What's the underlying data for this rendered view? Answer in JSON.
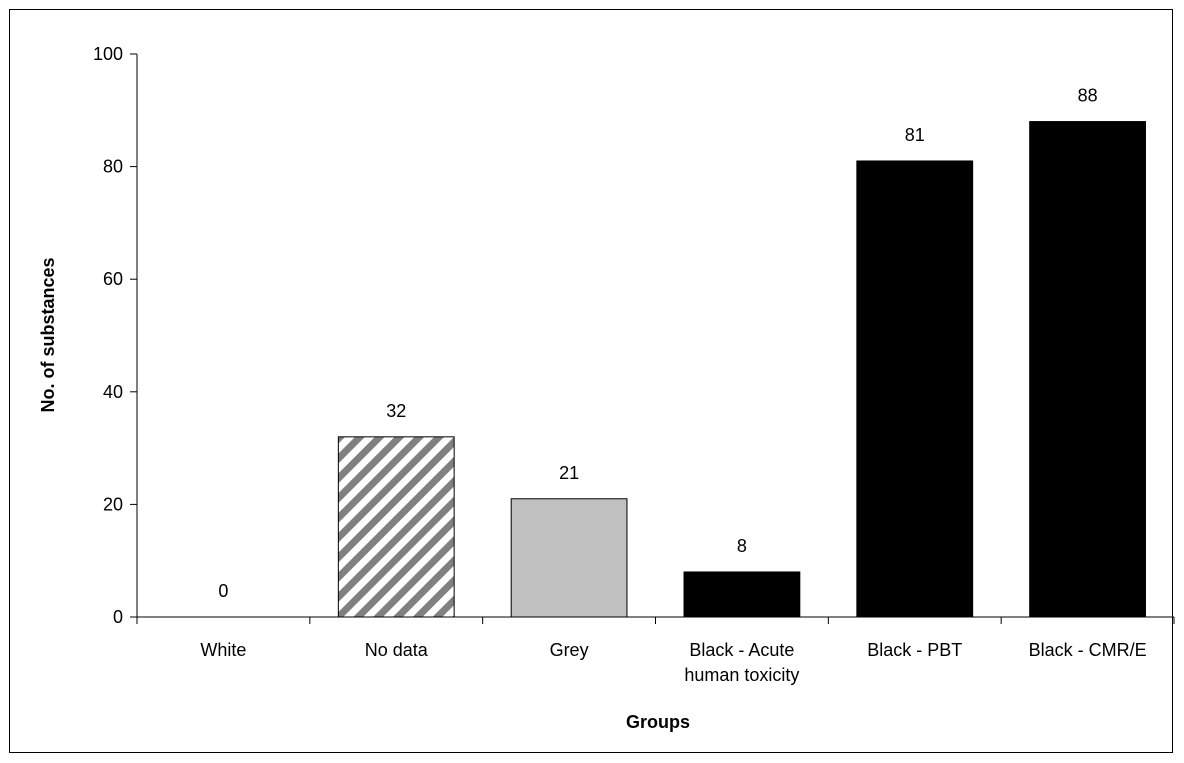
{
  "chart_data": {
    "type": "bar",
    "title": "",
    "xlabel": "Groups",
    "ylabel": "No. of substances",
    "ylim": [
      0,
      100
    ],
    "yticks": [
      0,
      20,
      40,
      60,
      80,
      100
    ],
    "grid": false,
    "legend": "none",
    "categories": [
      [
        "White"
      ],
      [
        "No data"
      ],
      [
        "Grey"
      ],
      [
        "Black - Acute",
        "human toxicity"
      ],
      [
        "Black - PBT"
      ],
      [
        "Black - CMR/E"
      ]
    ],
    "values": [
      0,
      32,
      21,
      8,
      81,
      88
    ],
    "data_labels": [
      "0",
      "32",
      "21",
      "8",
      "81",
      "88"
    ],
    "bar_fills": [
      "white",
      "hatched",
      "grey",
      "black",
      "black",
      "black"
    ],
    "colors": {
      "grey": "#c0c0c0",
      "black": "#000000",
      "hatch_stripe": "#808080",
      "axis": "#000000"
    }
  }
}
